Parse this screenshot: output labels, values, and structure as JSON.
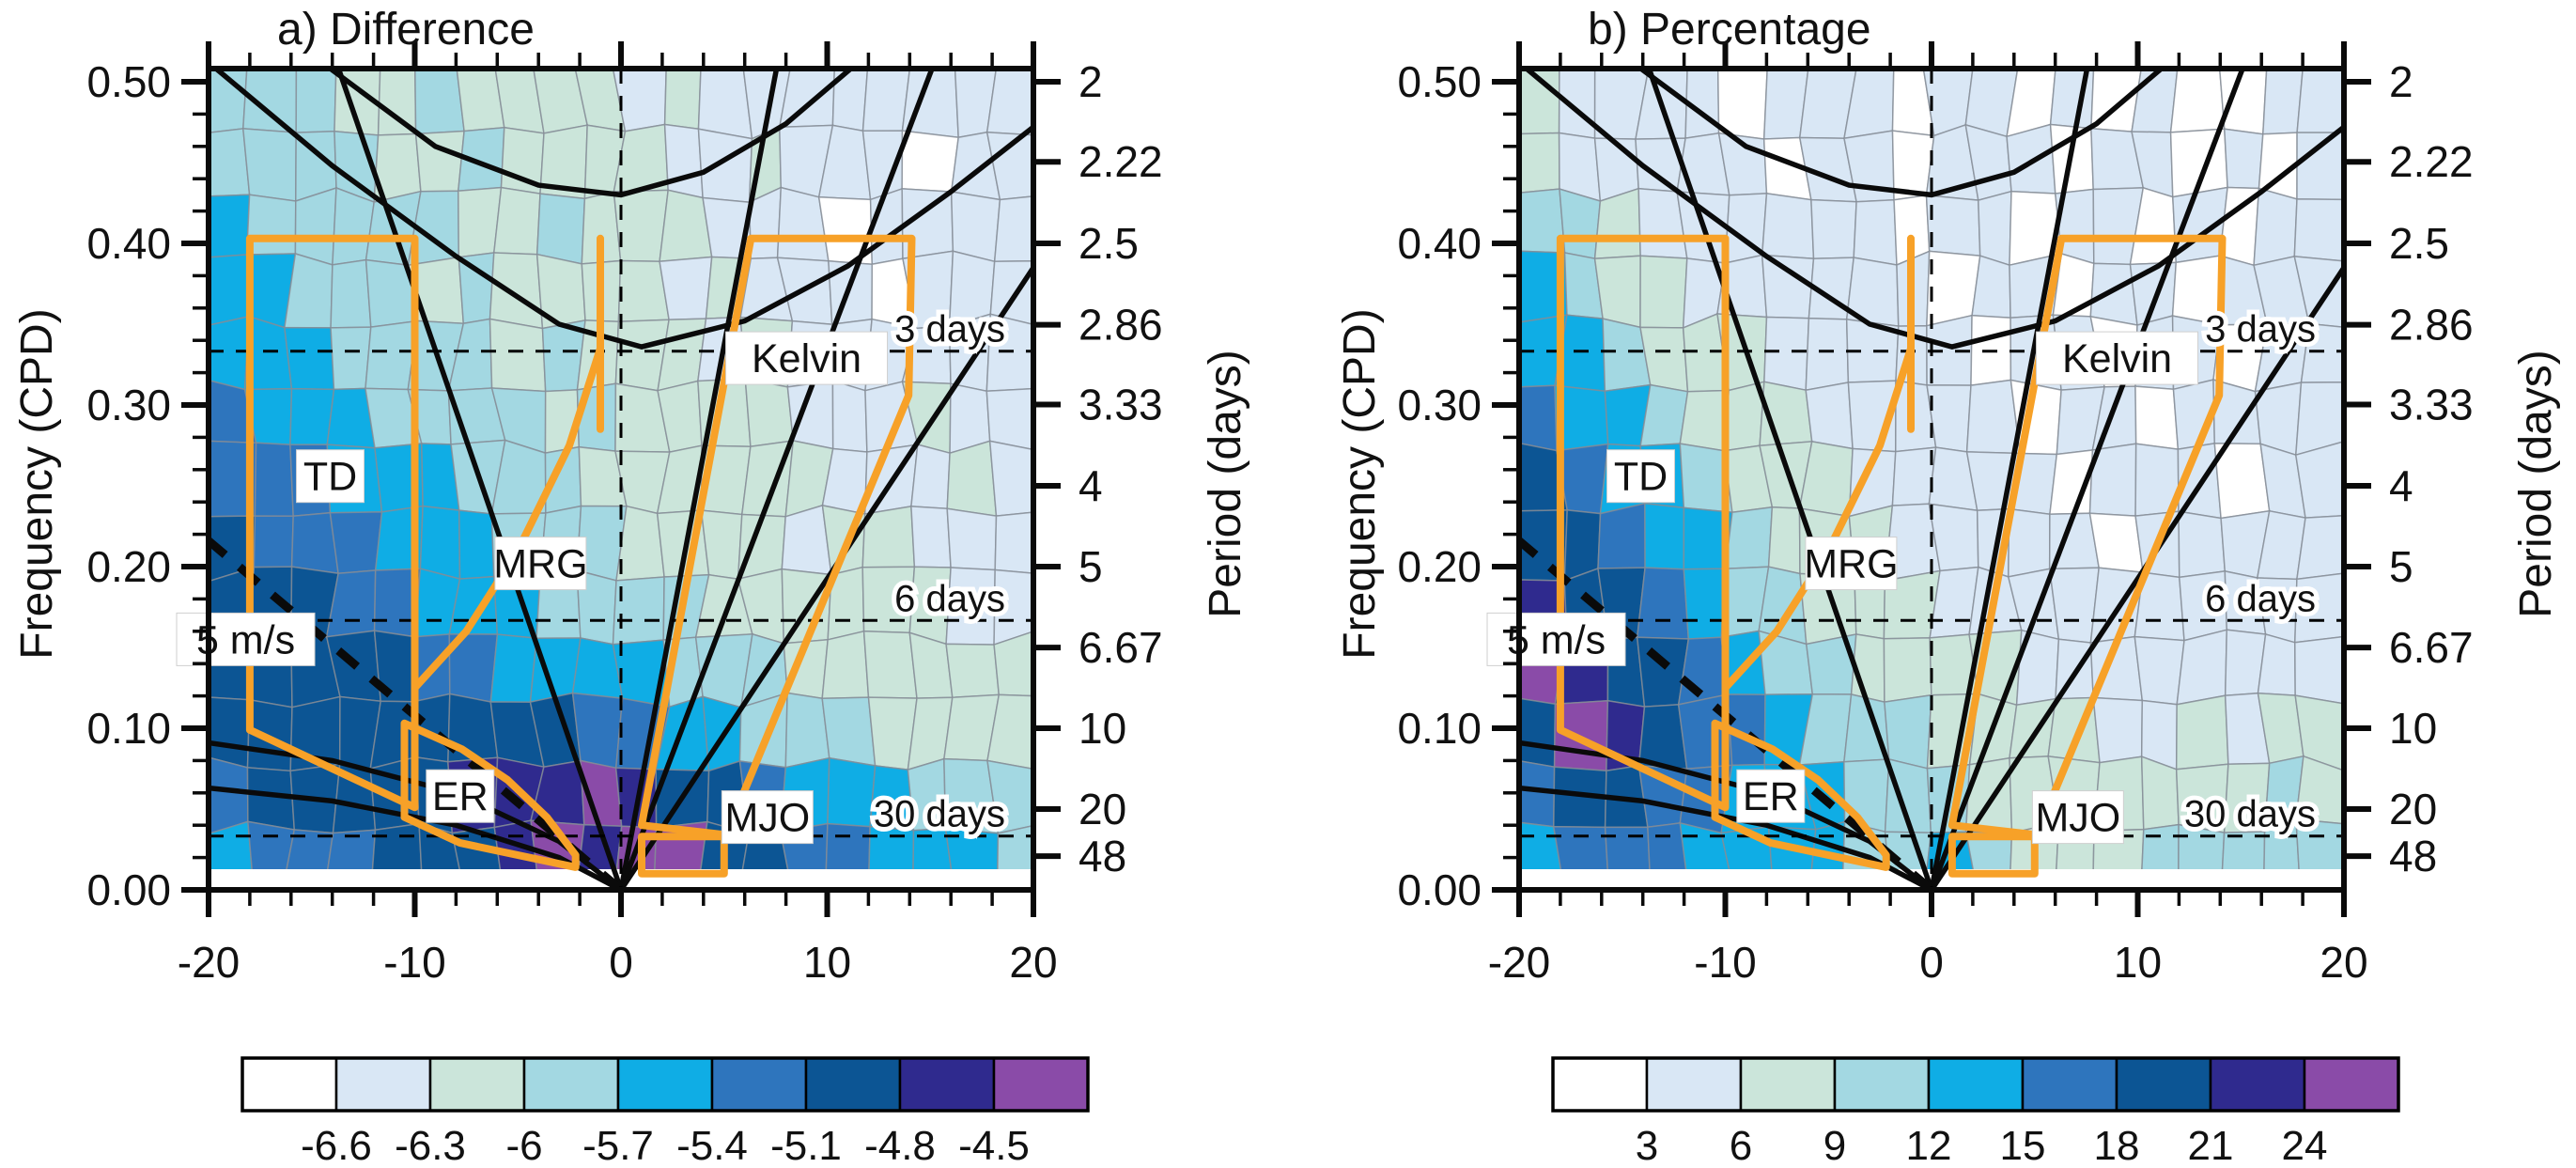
{
  "figure": {
    "background": "#ffffff",
    "accent_orange": "#f7a128",
    "contour_line_gray": "#848c96",
    "frame_color": "#0a0a0a"
  },
  "chart_data": [
    {
      "id": "a",
      "type": "heatmap",
      "title": "a) Difference",
      "xlim": [
        -20,
        20
      ],
      "ylim": [
        0,
        0.508
      ],
      "xticks": [
        "-20",
        "-10",
        "0",
        "10",
        "20"
      ],
      "yticks": [
        "0.00",
        "0.10",
        "0.20",
        "0.30",
        "0.40",
        "0.50"
      ],
      "ytick_values": [
        0,
        0.1,
        0.2,
        0.3,
        0.4,
        0.5
      ],
      "ylabel": "Frequency (CPD)",
      "y2label": "Period (days)",
      "period_ticks": [
        "2",
        "2.22",
        "2.5",
        "2.86",
        "3.33",
        "4",
        "5",
        "6.67",
        "10",
        "20",
        "48"
      ],
      "period_tick_values": [
        2,
        2.22,
        2.5,
        2.86,
        3.33,
        4,
        5,
        6.67,
        10,
        20,
        48
      ],
      "reference_lines": {
        "horizontal": [
          {
            "label": "3 days",
            "frequency": 0.3333
          },
          {
            "label": "6 days",
            "frequency": 0.1667
          },
          {
            "label": "30 days",
            "frequency": 0.0333
          }
        ],
        "vertical_wavenumber": 0
      },
      "wave_labels": [
        {
          "text": "TD",
          "k": -14.1,
          "f": 0.256,
          "boxed": true
        },
        {
          "text": "MRG",
          "k": -3.9,
          "f": 0.202,
          "boxed": true
        },
        {
          "text": "5 m/s",
          "k": -18.2,
          "f": 0.155,
          "boxed": true
        },
        {
          "text": "ER",
          "k": -7.8,
          "f": 0.058,
          "boxed": true
        },
        {
          "text": "Kelvin",
          "k": 9.0,
          "f": 0.329,
          "boxed": true
        },
        {
          "text": "MJO",
          "k": 7.1,
          "f": 0.045,
          "boxed": true
        }
      ],
      "colorbar": {
        "boundary_labels": [
          "-6.6",
          "-6.3",
          "-6",
          "-5.7",
          "-5.4",
          "-5.1",
          "-4.8",
          "-4.5"
        ],
        "colors": [
          "#ffffff",
          "#d9e7f5",
          "#cbe5da",
          "#a3d8e2",
          "#0fade5",
          "#2e75bd",
          "#0c5594",
          "#2f2a8e",
          "#8a4ba8"
        ]
      },
      "grid": {
        "cols": 20,
        "rows": 13,
        "row_levels": [
          "33322322221211111111",
          "33332232222112111011",
          "43333322322211101111",
          "44333232222121110111",
          "44433332322212111111",
          "54443333232222111211",
          "55544433322222211121",
          "65554443332222122111",
          "66655444333322222211",
          "66666554444333222222",
          "66666666655443332222",
          "56666677787665444333",
          "45556667878866554443"
        ]
      }
    },
    {
      "id": "b",
      "type": "heatmap",
      "title": "b) Percentage",
      "xlim": [
        -20,
        20
      ],
      "ylim": [
        0,
        0.508
      ],
      "xticks": [
        "-20",
        "-10",
        "0",
        "10",
        "20"
      ],
      "yticks": [
        "0.00",
        "0.10",
        "0.20",
        "0.30",
        "0.40",
        "0.50"
      ],
      "ytick_values": [
        0,
        0.1,
        0.2,
        0.3,
        0.4,
        0.5
      ],
      "ylabel": "Frequency (CPD)",
      "y2label": "Period (days)",
      "period_ticks": [
        "2",
        "2.22",
        "2.5",
        "2.86",
        "3.33",
        "4",
        "5",
        "6.67",
        "10",
        "20",
        "48"
      ],
      "period_tick_values": [
        2,
        2.22,
        2.5,
        2.86,
        3.33,
        4,
        5,
        6.67,
        10,
        20,
        48
      ],
      "reference_lines": {
        "horizontal": [
          {
            "label": "3 days",
            "frequency": 0.3333
          },
          {
            "label": "6 days",
            "frequency": 0.1667
          },
          {
            "label": "30 days",
            "frequency": 0.0333
          }
        ],
        "vertical_wavenumber": 0
      },
      "wave_labels": [
        {
          "text": "TD",
          "k": -14.1,
          "f": 0.256,
          "boxed": true
        },
        {
          "text": "MRG",
          "k": -3.9,
          "f": 0.202,
          "boxed": true
        },
        {
          "text": "5 m/s",
          "k": -18.2,
          "f": 0.155,
          "boxed": true
        },
        {
          "text": "ER",
          "k": -7.8,
          "f": 0.058,
          "boxed": true
        },
        {
          "text": "Kelvin",
          "k": 9.0,
          "f": 0.329,
          "boxed": true
        },
        {
          "text": "MJO",
          "k": 7.1,
          "f": 0.045,
          "boxed": true
        }
      ],
      "colorbar": {
        "boundary_labels": [
          "3",
          "6",
          "9",
          "12",
          "15",
          "18",
          "21",
          "24"
        ],
        "colors": [
          "#ffffff",
          "#d9e7f5",
          "#cbe5da",
          "#a3d8e2",
          "#0fade5",
          "#2e75bd",
          "#0c5594",
          "#2f2a8e",
          "#8a4ba8"
        ]
      },
      "grid": {
        "cols": 20,
        "rows": 13,
        "row_levels": [
          "21111011101101010011",
          "21111101101110110101",
          "33211111101101101011",
          "43221111110110110111",
          "44322211111011011011",
          "54432221111101101111",
          "65443222111110111011",
          "66544322211111011111",
          "76654332221111111111",
          "87665433222211111111",
          "68765543332222112122",
          "56655444333222222232",
          "45554444334322233333"
        ]
      }
    }
  ],
  "wave_filters": [
    {
      "name": "TD",
      "shape": "polygon",
      "points": [
        [
          -18,
          0.403
        ],
        [
          -10,
          0.403
        ],
        [
          -10,
          0.051
        ],
        [
          -18,
          0.099
        ]
      ]
    },
    {
      "name": "MRG-curve",
      "shape": "polyline",
      "points": [
        [
          -10,
          0.125
        ],
        [
          -7.5,
          0.16
        ],
        [
          -5,
          0.21
        ],
        [
          -2.5,
          0.275
        ],
        [
          -1,
          0.335
        ]
      ]
    },
    {
      "name": "MRG-right-edge",
      "shape": "polyline",
      "points": [
        [
          -1,
          0.285
        ],
        [
          -1,
          0.403
        ]
      ]
    },
    {
      "name": "ER",
      "shape": "polygon",
      "points": [
        [
          -10.5,
          0.103
        ],
        [
          -7.7,
          0.087
        ],
        [
          -5.5,
          0.068
        ],
        [
          -3.6,
          0.045
        ],
        [
          -2.2,
          0.0215
        ],
        [
          -2.2,
          0.014
        ],
        [
          -7.8,
          0.029
        ],
        [
          -10.5,
          0.045
        ]
      ]
    },
    {
      "name": "Kelvin",
      "shape": "polygon",
      "points": [
        [
          6.3,
          0.403
        ],
        [
          14.1,
          0.403
        ],
        [
          13.95,
          0.306
        ],
        [
          5.1,
          0.034
        ],
        [
          1.0,
          0.04
        ]
      ]
    },
    {
      "name": "MJO",
      "shape": "polygon",
      "points": [
        [
          1,
          0.033
        ],
        [
          5,
          0.033
        ],
        [
          5,
          0.01
        ],
        [
          1,
          0.01
        ]
      ]
    }
  ],
  "dispersion_curves": [
    {
      "name": "inertio-gravity-lower",
      "points": [
        [
          -20,
          0.512
        ],
        [
          -14,
          0.448
        ],
        [
          -8,
          0.392
        ],
        [
          -3,
          0.35
        ],
        [
          1,
          0.336
        ],
        [
          6,
          0.352
        ],
        [
          11,
          0.386
        ],
        [
          16,
          0.432
        ],
        [
          20,
          0.472
        ]
      ]
    },
    {
      "name": "inertio-gravity-upper",
      "points": [
        [
          -14.5,
          0.512
        ],
        [
          -9,
          0.46
        ],
        [
          -4,
          0.436
        ],
        [
          0,
          0.43
        ],
        [
          4,
          0.444
        ],
        [
          8,
          0.474
        ],
        [
          11.5,
          0.512
        ]
      ]
    },
    {
      "name": "kelvin-line-fast",
      "points": [
        [
          0,
          0
        ],
        [
          7.6,
          0.512
        ]
      ]
    },
    {
      "name": "kelvin-line-mid",
      "points": [
        [
          0,
          0
        ],
        [
          15.2,
          0.512
        ]
      ]
    },
    {
      "name": "kelvin-line-slow",
      "points": [
        [
          0,
          0
        ],
        [
          20,
          0.385
        ]
      ]
    },
    {
      "name": "westward-ig-line",
      "points": [
        [
          0,
          0
        ],
        [
          -13.8,
          0.512
        ]
      ]
    },
    {
      "name": "er-dispersion-1",
      "points": [
        [
          0,
          0
        ],
        [
          -3,
          0.03
        ],
        [
          -8,
          0.06
        ],
        [
          -14,
          0.08
        ],
        [
          -20,
          0.091
        ]
      ]
    },
    {
      "name": "er-dispersion-2",
      "points": [
        [
          0,
          0
        ],
        [
          -3,
          0.02
        ],
        [
          -8,
          0.04
        ],
        [
          -14,
          0.055
        ],
        [
          -20,
          0.063
        ]
      ]
    },
    {
      "name": "five-ms-line",
      "points": [
        [
          0,
          0
        ],
        [
          -20,
          0.216
        ]
      ],
      "dashed": true
    }
  ]
}
